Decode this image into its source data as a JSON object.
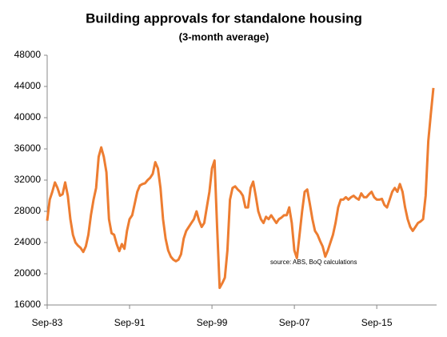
{
  "chart_data": {
    "type": "line",
    "title": "Building approvals for standalone housing",
    "subtitle": "(3-month  average)",
    "annotation": "source:  ABS, BoQ calculations",
    "categories": [
      "Sep-83",
      null,
      null,
      null,
      null,
      null,
      null,
      null,
      null,
      null,
      null,
      null,
      null,
      null,
      null,
      null,
      null,
      null,
      null,
      null,
      null,
      null,
      null,
      null,
      null,
      null,
      null,
      null,
      null,
      null,
      null,
      null,
      "Sep-91",
      null,
      null,
      null,
      null,
      null,
      null,
      null,
      null,
      null,
      null,
      null,
      null,
      null,
      null,
      null,
      null,
      null,
      null,
      null,
      null,
      null,
      null,
      null,
      null,
      null,
      null,
      null,
      null,
      null,
      null,
      null,
      "Sep-99",
      null,
      null,
      null,
      null,
      null,
      null,
      null,
      null,
      null,
      null,
      null,
      null,
      null,
      null,
      null,
      null,
      null,
      null,
      null,
      null,
      null,
      null,
      null,
      null,
      null,
      null,
      null,
      null,
      null,
      null,
      null,
      "Sep-07",
      null,
      null,
      null,
      null,
      null,
      null,
      null,
      null,
      null,
      null,
      null,
      null,
      null,
      null,
      null,
      null,
      null,
      null,
      null,
      null,
      null,
      null,
      null,
      null,
      null,
      null,
      null,
      null,
      null,
      null,
      null,
      "Sep-15",
      null,
      null,
      null,
      null,
      null,
      null,
      null,
      null,
      null,
      null,
      null,
      null,
      null,
      null,
      null,
      null,
      null,
      null,
      null,
      null,
      null,
      null
    ],
    "series": [
      {
        "name": "Building approvals",
        "color": "#ed7d31",
        "values": [
          26800,
          29500,
          30500,
          31700,
          31000,
          30000,
          30200,
          31700,
          30000,
          27000,
          25000,
          24000,
          23600,
          23300,
          22800,
          23500,
          25000,
          27500,
          29500,
          31000,
          35000,
          36200,
          35000,
          33000,
          27000,
          25200,
          25000,
          23800,
          22900,
          23800,
          23200,
          25500,
          27000,
          27500,
          29000,
          30500,
          31300,
          31500,
          31600,
          32000,
          32300,
          32800,
          34300,
          33500,
          31000,
          27000,
          24500,
          23000,
          22200,
          21800,
          21600,
          21800,
          22500,
          24500,
          25500,
          26000,
          26500,
          27000,
          28000,
          26800,
          26000,
          26500,
          28500,
          30500,
          33500,
          34500,
          26000,
          18200,
          18800,
          19500,
          23000,
          29500,
          31000,
          31200,
          30800,
          30500,
          30000,
          28500,
          28500,
          31000,
          31800,
          30000,
          28000,
          27000,
          26500,
          27300,
          27000,
          27500,
          27000,
          26500,
          27000,
          27200,
          27500,
          27500,
          28500,
          26500,
          23000,
          22000,
          25000,
          28000,
          30500,
          30800,
          29000,
          27000,
          25500,
          25000,
          24200,
          23500,
          22200,
          23000,
          24000,
          25000,
          26500,
          28500,
          29500,
          29500,
          29800,
          29500,
          29800,
          30000,
          29700,
          29500,
          30300,
          29800,
          29800,
          30200,
          30500,
          29800,
          29500,
          29500,
          29600,
          28800,
          28500,
          29500,
          30500,
          31000,
          30500,
          31500,
          30500,
          28500,
          27000,
          26000,
          25500,
          26000,
          26500,
          26700,
          27000,
          30000,
          37000,
          40500,
          43800
        ]
      }
    ],
    "ylim": [
      16000,
      48000
    ],
    "yticks": [
      16000,
      20000,
      24000,
      28000,
      32000,
      36000,
      40000,
      44000,
      48000
    ],
    "grid": false
  }
}
